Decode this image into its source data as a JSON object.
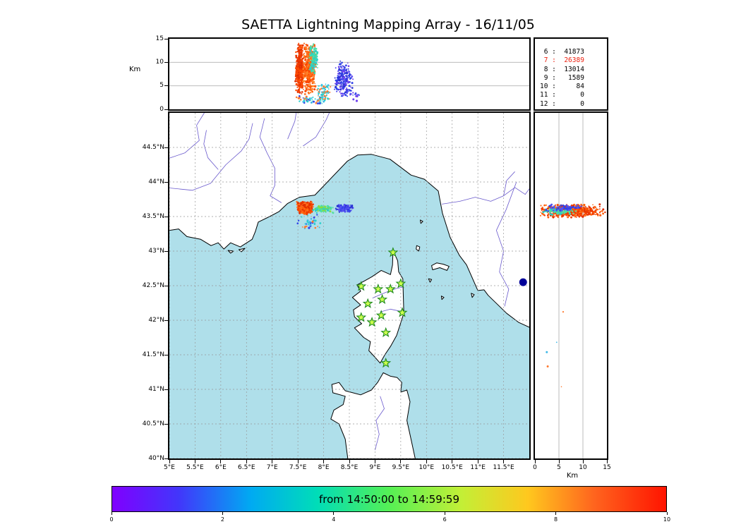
{
  "title": "SAETTA Lightning Mapping Array - 16/11/05",
  "colors": {
    "sea": "#afdfea",
    "land": "#ffffff",
    "coast": "#000000",
    "river": "#6a5acd",
    "grid": "#999999",
    "panel_grid": "#bbbbbb",
    "star_fill": "#ccff4d",
    "star_edge": "#1e8a1e",
    "navy_dot": "#000099",
    "stat_highlight": "#ee2211"
  },
  "stats": {
    "rows": [
      {
        "label": "6",
        "value": "41873",
        "highlight": false
      },
      {
        "label": "7",
        "value": "26389",
        "highlight": true
      },
      {
        "label": "8",
        "value": "13014",
        "highlight": false
      },
      {
        "label": "9",
        "value": "1589",
        "highlight": false
      },
      {
        "label": "10",
        "value": "84",
        "highlight": false
      },
      {
        "label": "11",
        "value": "0",
        "highlight": false
      },
      {
        "label": "12",
        "value": "0",
        "highlight": false
      }
    ]
  },
  "axes": {
    "km_label_left": "Km",
    "km_label_bottom": "Km",
    "lon": {
      "min": 5,
      "max": 12
    },
    "lat": {
      "min": 40,
      "max": 45
    },
    "alt": {
      "min": 0,
      "max": 15
    },
    "alt_ticks": [
      {
        "v": 0,
        "label": "0"
      },
      {
        "v": 5,
        "label": "5"
      },
      {
        "v": 10,
        "label": "10"
      },
      {
        "v": 15,
        "label": "15"
      }
    ],
    "alt_grid": [
      5,
      10
    ],
    "lat_ticks": [
      {
        "v": 40,
        "label": "40°N"
      },
      {
        "v": 40.5,
        "label": "40.5°N"
      },
      {
        "v": 41,
        "label": "41°N"
      },
      {
        "v": 41.5,
        "label": "41.5°N"
      },
      {
        "v": 42,
        "label": "42°N"
      },
      {
        "v": 42.5,
        "label": "42.5°N"
      },
      {
        "v": 43,
        "label": "43°N"
      },
      {
        "v": 43.5,
        "label": "43.5°N"
      },
      {
        "v": 44,
        "label": "44°N"
      },
      {
        "v": 44.5,
        "label": "44.5°N"
      }
    ],
    "lon_ticks": [
      {
        "v": 5,
        "label": "5°E"
      },
      {
        "v": 5.5,
        "label": "5.5°E"
      },
      {
        "v": 6,
        "label": "6°E"
      },
      {
        "v": 6.5,
        "label": "6.5°E"
      },
      {
        "v": 7,
        "label": "7°E"
      },
      {
        "v": 7.5,
        "label": "7.5°E"
      },
      {
        "v": 8,
        "label": "8°E"
      },
      {
        "v": 8.5,
        "label": "8.5°E"
      },
      {
        "v": 9,
        "label": "9°E"
      },
      {
        "v": 9.5,
        "label": "9.5°E"
      },
      {
        "v": 10,
        "label": "10°E"
      },
      {
        "v": 10.5,
        "label": "10.5°E"
      },
      {
        "v": 11,
        "label": "11°E"
      },
      {
        "v": 11.5,
        "label": "11.5°E"
      }
    ]
  },
  "colorbar": {
    "label": "from 14:50:00 to 14:59:59",
    "ticks": [
      {
        "f": 0,
        "label": "0"
      },
      {
        "f": 0.2,
        "label": "2"
      },
      {
        "f": 0.4,
        "label": "4"
      },
      {
        "f": 0.6,
        "label": "6"
      },
      {
        "f": 0.8,
        "label": "8"
      },
      {
        "f": 1,
        "label": "10"
      }
    ],
    "gradient": [
      {
        "p": 0,
        "c": "#8000ff"
      },
      {
        "p": 12,
        "c": "#4236fb"
      },
      {
        "p": 25,
        "c": "#00aaf2"
      },
      {
        "p": 37,
        "c": "#00ddb8"
      },
      {
        "p": 50,
        "c": "#55f055"
      },
      {
        "p": 63,
        "c": "#c3ef36"
      },
      {
        "p": 75,
        "c": "#ffc81e"
      },
      {
        "p": 87,
        "c": "#ff641e"
      },
      {
        "p": 100,
        "c": "#ff1400"
      }
    ]
  },
  "map": {
    "land": [
      [
        [
          5.0,
          43.3
        ],
        [
          5.18,
          43.32
        ],
        [
          5.34,
          43.21
        ],
        [
          5.61,
          43.17
        ],
        [
          5.81,
          43.08
        ],
        [
          5.95,
          43.12
        ],
        [
          6.06,
          43.03
        ],
        [
          6.19,
          43.12
        ],
        [
          6.38,
          43.06
        ],
        [
          6.61,
          43.17
        ],
        [
          6.67,
          43.28
        ],
        [
          6.73,
          43.42
        ],
        [
          6.95,
          43.5
        ],
        [
          7.13,
          43.57
        ],
        [
          7.3,
          43.69
        ],
        [
          7.53,
          43.78
        ],
        [
          7.83,
          43.81
        ],
        [
          8.1,
          44.02
        ],
        [
          8.46,
          44.3
        ],
        [
          8.66,
          44.39
        ],
        [
          8.93,
          44.4
        ],
        [
          9.29,
          44.33
        ],
        [
          9.7,
          44.1
        ],
        [
          9.96,
          44.04
        ],
        [
          10.23,
          43.87
        ],
        [
          10.31,
          43.55
        ],
        [
          10.46,
          43.2
        ],
        [
          10.64,
          42.94
        ],
        [
          10.78,
          42.8
        ],
        [
          11.0,
          42.43
        ],
        [
          11.12,
          42.44
        ],
        [
          11.2,
          42.36
        ],
        [
          11.56,
          42.1
        ],
        [
          11.79,
          41.97
        ],
        [
          12.2,
          41.83
        ],
        [
          12.2,
          45.3
        ],
        [
          4.8,
          45.3
        ],
        [
          4.8,
          43.3
        ]
      ],
      [
        [
          9.35,
          43.01
        ],
        [
          9.44,
          42.86
        ],
        [
          9.46,
          42.7
        ],
        [
          9.54,
          42.6
        ],
        [
          9.55,
          42.35
        ],
        [
          9.56,
          42.1
        ],
        [
          9.42,
          41.78
        ],
        [
          9.3,
          41.62
        ],
        [
          9.19,
          41.5
        ],
        [
          9.1,
          41.38
        ],
        [
          8.98,
          41.48
        ],
        [
          8.88,
          41.56
        ],
        [
          8.91,
          41.69
        ],
        [
          8.78,
          41.75
        ],
        [
          8.6,
          41.89
        ],
        [
          8.74,
          41.95
        ],
        [
          8.6,
          42.05
        ],
        [
          8.58,
          42.15
        ],
        [
          8.72,
          42.22
        ],
        [
          8.56,
          42.33
        ],
        [
          8.72,
          42.42
        ],
        [
          8.65,
          42.51
        ],
        [
          8.8,
          42.57
        ],
        [
          8.94,
          42.63
        ],
        [
          9.12,
          42.72
        ],
        [
          9.3,
          42.66
        ],
        [
          9.34,
          42.8
        ]
      ],
      [
        [
          8.47,
          39.9
        ],
        [
          8.47,
          40.0
        ],
        [
          8.42,
          40.28
        ],
        [
          8.3,
          40.5
        ],
        [
          8.14,
          40.57
        ],
        [
          8.2,
          40.7
        ],
        [
          8.38,
          40.78
        ],
        [
          8.42,
          40.9
        ],
        [
          8.18,
          40.95
        ],
        [
          8.16,
          41.07
        ],
        [
          8.3,
          41.1
        ],
        [
          8.42,
          40.98
        ],
        [
          8.72,
          40.92
        ],
        [
          8.93,
          40.99
        ],
        [
          9.05,
          41.1
        ],
        [
          9.16,
          41.24
        ],
        [
          9.3,
          41.19
        ],
        [
          9.43,
          41.17
        ],
        [
          9.52,
          41.1
        ],
        [
          9.5,
          40.96
        ],
        [
          9.62,
          40.99
        ],
        [
          9.68,
          40.82
        ],
        [
          9.62,
          40.55
        ],
        [
          9.7,
          40.28
        ],
        [
          9.78,
          40.0
        ],
        [
          9.78,
          39.9
        ]
      ],
      [
        [
          10.1,
          42.79
        ],
        [
          10.2,
          42.83
        ],
        [
          10.33,
          42.81
        ],
        [
          10.44,
          42.78
        ],
        [
          10.4,
          42.72
        ],
        [
          10.26,
          42.76
        ],
        [
          10.12,
          42.73
        ]
      ],
      [
        [
          9.81,
          43.08
        ],
        [
          9.87,
          43.06
        ],
        [
          9.85,
          43.0
        ],
        [
          9.8,
          43.03
        ]
      ],
      [
        [
          9.88,
          43.45
        ],
        [
          9.93,
          43.43
        ],
        [
          9.89,
          43.4
        ]
      ],
      [
        [
          10.04,
          42.6
        ],
        [
          10.1,
          42.59
        ],
        [
          10.07,
          42.55
        ]
      ],
      [
        [
          10.87,
          42.39
        ],
        [
          10.93,
          42.37
        ],
        [
          10.89,
          42.33
        ]
      ],
      [
        [
          10.29,
          42.35
        ],
        [
          10.34,
          42.33
        ],
        [
          10.3,
          42.3
        ]
      ],
      [
        [
          6.14,
          43.01
        ],
        [
          6.25,
          43.0
        ],
        [
          6.19,
          42.97
        ]
      ],
      [
        [
          6.35,
          43.02
        ],
        [
          6.47,
          43.04
        ],
        [
          6.4,
          42.99
        ]
      ]
    ],
    "rivers": [
      [
        [
          4.9,
          44.32
        ],
        [
          5.3,
          44.42
        ],
        [
          5.58,
          44.6
        ],
        [
          5.53,
          44.82
        ],
        [
          5.68,
          45.0
        ]
      ],
      [
        [
          4.9,
          43.92
        ],
        [
          5.45,
          43.88
        ],
        [
          5.8,
          43.98
        ],
        [
          6.1,
          44.25
        ],
        [
          6.4,
          44.45
        ],
        [
          6.55,
          44.62
        ],
        [
          6.62,
          44.85
        ]
      ],
      [
        [
          5.95,
          44.18
        ],
        [
          5.75,
          44.35
        ],
        [
          5.67,
          44.55
        ],
        [
          5.72,
          44.75
        ]
      ],
      [
        [
          6.85,
          44.92
        ],
        [
          6.76,
          44.65
        ],
        [
          6.9,
          44.42
        ],
        [
          7.05,
          44.2
        ],
        [
          7.05,
          43.95
        ],
        [
          6.96,
          43.8
        ],
        [
          7.18,
          43.7
        ]
      ],
      [
        [
          7.5,
          45.15
        ],
        [
          7.44,
          44.88
        ],
        [
          7.3,
          44.62
        ]
      ],
      [
        [
          8.2,
          45.15
        ],
        [
          8.05,
          44.9
        ],
        [
          7.85,
          44.65
        ],
        [
          7.6,
          44.52
        ]
      ],
      [
        [
          10.3,
          43.68
        ],
        [
          10.65,
          43.72
        ],
        [
          10.95,
          43.78
        ],
        [
          11.25,
          43.72
        ],
        [
          11.5,
          43.8
        ],
        [
          11.72,
          43.92
        ],
        [
          11.92,
          43.82
        ],
        [
          12.05,
          43.95
        ]
      ],
      [
        [
          11.5,
          43.8
        ],
        [
          11.56,
          44.02
        ],
        [
          11.72,
          44.15
        ]
      ],
      [
        [
          11.75,
          44.0
        ],
        [
          11.55,
          43.6
        ],
        [
          11.36,
          43.3
        ],
        [
          11.5,
          43.0
        ],
        [
          11.42,
          42.7
        ],
        [
          11.6,
          42.45
        ],
        [
          11.52,
          42.2
        ]
      ],
      [
        [
          8.95,
          42.32
        ],
        [
          9.2,
          42.4
        ],
        [
          9.42,
          42.46
        ],
        [
          9.55,
          42.48
        ]
      ],
      [
        [
          9.1,
          42.12
        ],
        [
          9.3,
          42.16
        ],
        [
          9.55,
          42.12
        ]
      ],
      [
        [
          9.0,
          40.12
        ],
        [
          9.08,
          40.35
        ],
        [
          9.02,
          40.55
        ],
        [
          9.18,
          40.72
        ],
        [
          9.1,
          40.9
        ]
      ]
    ],
    "navy_dot": {
      "lon": 11.88,
      "lat": 42.55
    }
  },
  "stations": [
    [
      9.35,
      42.98
    ],
    [
      8.73,
      42.49
    ],
    [
      9.06,
      42.45
    ],
    [
      9.3,
      42.45
    ],
    [
      9.5,
      42.53
    ],
    [
      8.86,
      42.24
    ],
    [
      9.14,
      42.3
    ],
    [
      8.73,
      42.04
    ],
    [
      9.12,
      42.07
    ],
    [
      9.53,
      42.11
    ],
    [
      8.94,
      41.97
    ],
    [
      9.21,
      41.82
    ],
    [
      9.21,
      41.38
    ]
  ],
  "chart_data": {
    "type": "scatter",
    "title": "SAETTA Lightning Mapping Array - 16/11/05",
    "time_start": "14:50:00",
    "time_end": "14:59:59",
    "panels": {
      "top": {
        "x": "longitude_deg_E",
        "x_range": [
          5,
          12
        ],
        "y": "altitude_km",
        "y_range": [
          0,
          15
        ]
      },
      "map": {
        "x": "longitude_deg_E",
        "x_range": [
          5,
          12
        ],
        "y": "latitude_deg_N",
        "y_range": [
          40,
          45
        ]
      },
      "right": {
        "x": "altitude_km",
        "x_range": [
          0,
          15
        ],
        "y": "latitude_deg_N",
        "y_range": [
          40,
          45
        ]
      }
    },
    "storm_center": {
      "lon": 7.63,
      "lat": 43.62
    },
    "clusters": [
      {
        "panel": "top",
        "x": [
          7.45,
          7.62
        ],
        "y": [
          3.0,
          14.3
        ],
        "n": 380,
        "colors": [
          "#ef3a00",
          "#e02e00",
          "#ff4d00"
        ]
      },
      {
        "panel": "top",
        "x": [
          7.58,
          7.86
        ],
        "y": [
          3.0,
          14.6
        ],
        "n": 540,
        "colors": [
          "#ff5a00",
          "#ff6f1e",
          "#fa4400",
          "#ff8428"
        ]
      },
      {
        "panel": "top",
        "x": [
          7.7,
          7.9
        ],
        "y": [
          7.5,
          14.2
        ],
        "n": 110,
        "colors": [
          "#35dcb4",
          "#52e0a0",
          "#2cccc8"
        ]
      },
      {
        "panel": "top",
        "x": [
          7.84,
          8.14
        ],
        "y": [
          0.8,
          5.6
        ],
        "n": 75,
        "colors": [
          "#2ad0cd",
          "#3fc4e8",
          "#ff7a30"
        ]
      },
      {
        "panel": "top",
        "x": [
          8.18,
          8.58
        ],
        "y": [
          2.2,
          10.4
        ],
        "n": 210,
        "colors": [
          "#3143e8",
          "#2a31d2",
          "#5552f2",
          "#6f41ee"
        ]
      },
      {
        "panel": "top",
        "x": [
          7.4,
          8.05
        ],
        "y": [
          1.0,
          3.4
        ],
        "n": 45,
        "colors": [
          "#3fb9e8",
          "#2ad0cd",
          "#ff7a30",
          "#3143e8"
        ]
      },
      {
        "panel": "top",
        "x": [
          8.5,
          8.72
        ],
        "y": [
          1.5,
          4.2
        ],
        "n": 12,
        "colors": [
          "#3143e8",
          "#6f41ee"
        ]
      },
      {
        "panel": "map",
        "x": [
          7.47,
          7.8
        ],
        "y": [
          43.53,
          43.72
        ],
        "n": 540,
        "colors": [
          "#ef3a00",
          "#ff5a00",
          "#ff6f1e",
          "#e02e00"
        ]
      },
      {
        "panel": "map",
        "x": [
          7.78,
          8.2
        ],
        "y": [
          43.55,
          43.66
        ],
        "n": 110,
        "colors": [
          "#2cccc8",
          "#52e0a0",
          "#8ade3c"
        ]
      },
      {
        "panel": "map",
        "x": [
          8.22,
          8.58
        ],
        "y": [
          43.56,
          43.68
        ],
        "n": 150,
        "colors": [
          "#3143e8",
          "#2a31d2",
          "#5552f2"
        ]
      },
      {
        "panel": "map",
        "x": [
          7.45,
          7.98
        ],
        "y": [
          43.28,
          43.54
        ],
        "n": 42,
        "colors": [
          "#2ad0cd",
          "#ff7a30",
          "#3fb9e8",
          "#3143e8"
        ]
      },
      {
        "panel": "right",
        "x": [
          0.4,
          14.9
        ],
        "y": [
          43.48,
          43.68
        ],
        "n": 540,
        "colors": [
          "#ef3a00",
          "#ff5a00",
          "#ff6f1e",
          "#e02e00"
        ]
      },
      {
        "panel": "right",
        "x": [
          1.5,
          9.0
        ],
        "y": [
          43.52,
          43.64
        ],
        "n": 90,
        "colors": [
          "#2cccc8",
          "#52e0a0"
        ]
      },
      {
        "panel": "right",
        "x": [
          2.0,
          10.0
        ],
        "y": [
          43.57,
          43.68
        ],
        "n": 70,
        "colors": [
          "#3143e8",
          "#5552f2"
        ]
      },
      {
        "panel": "right",
        "x": [
          1.0,
          7.0
        ],
        "y": [
          40.75,
          42.4
        ],
        "n": 5,
        "colors": [
          "#ff7a30",
          "#3fb9e8"
        ]
      }
    ]
  }
}
